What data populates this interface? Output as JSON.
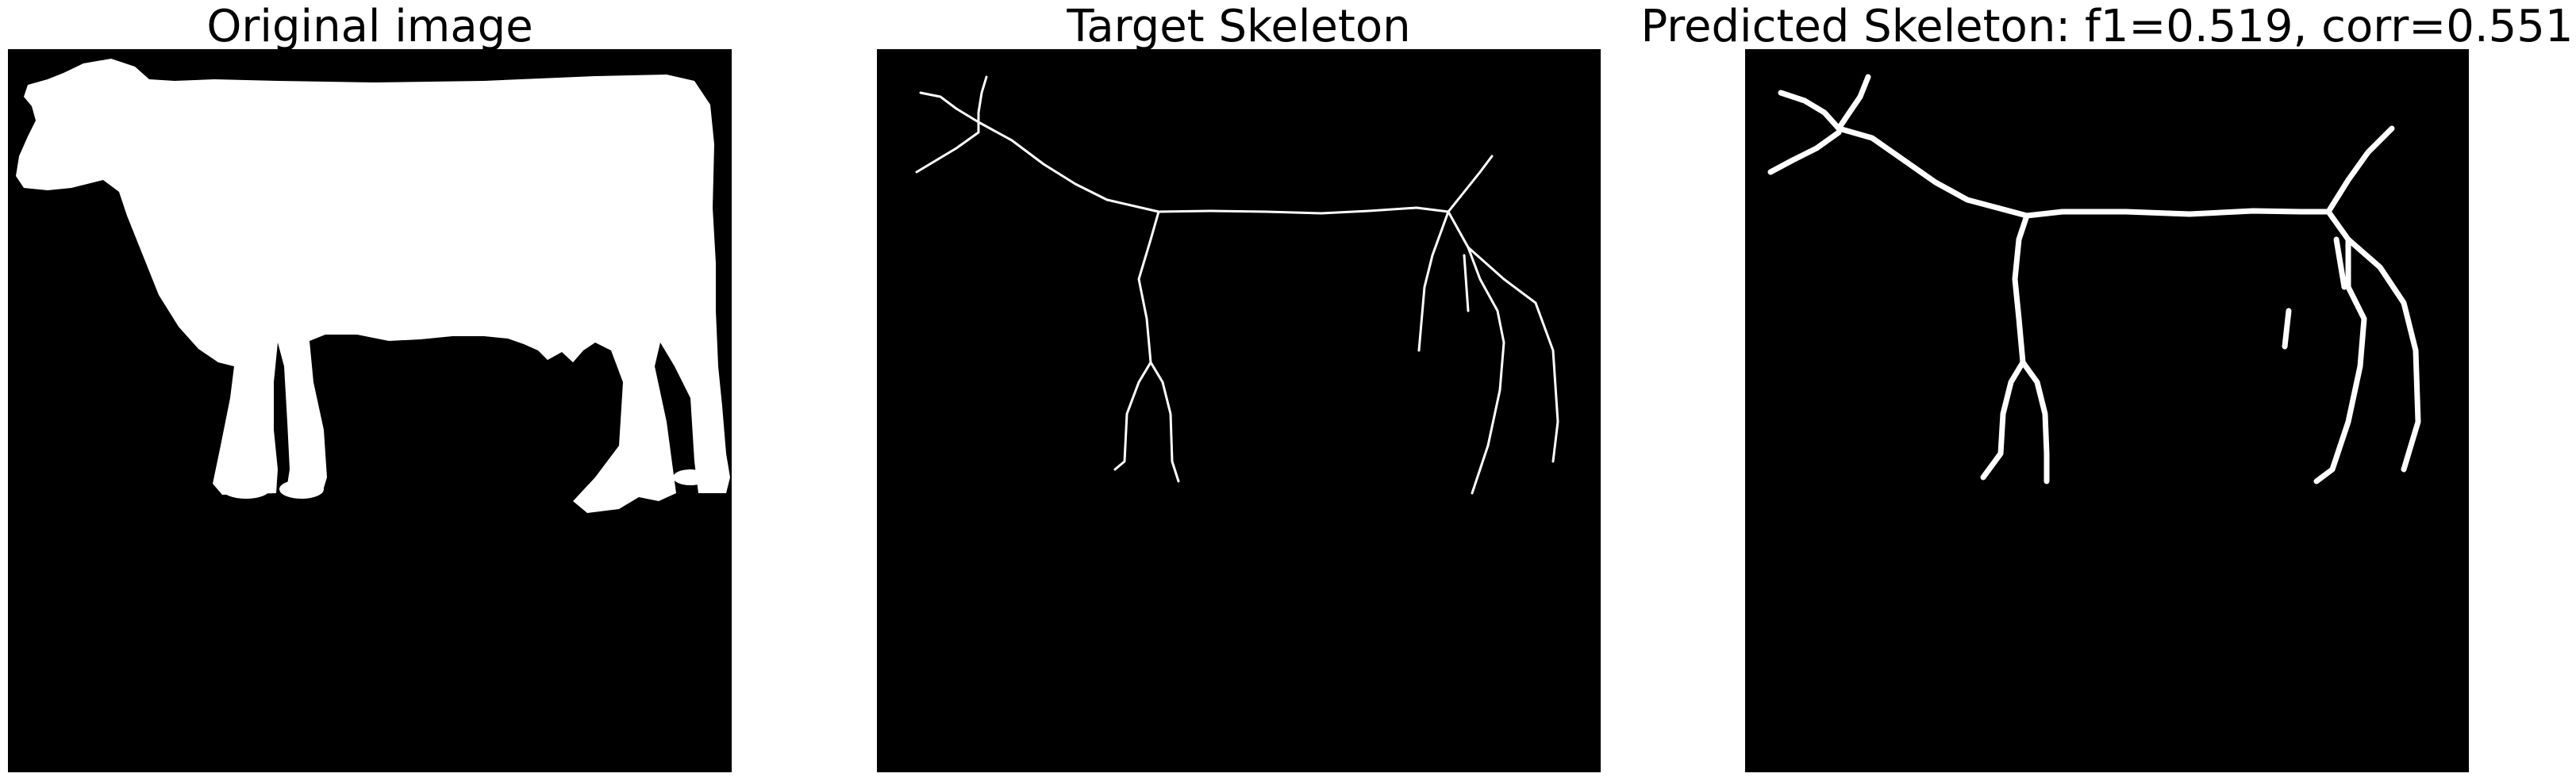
{
  "panels": [
    {
      "title": "Original image",
      "content": "cow silhouette mask"
    },
    {
      "title": "Target Skeleton",
      "content": "thin white skeleton of cow"
    },
    {
      "title": "Predicted Skeleton: f1=0.519, corr=0.551",
      "content": "thick white predicted skeleton of cow"
    }
  ],
  "colors": {
    "background": "#000000",
    "foreground": "#ffffff",
    "page": "#ffffff"
  }
}
